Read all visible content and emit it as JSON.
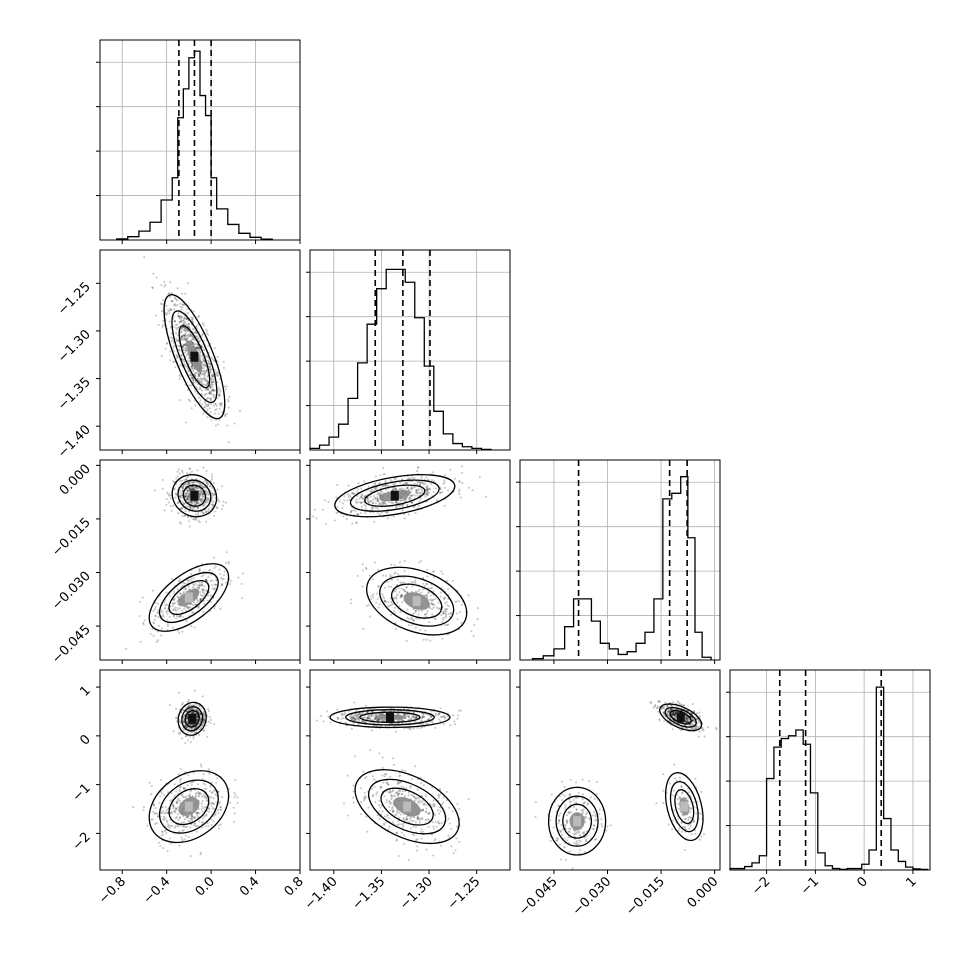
{
  "chart_data": {
    "type": "corner",
    "title": "",
    "parameters": [
      {
        "range": [
          -1.0,
          0.8
        ],
        "ticks": [
          -0.8,
          -0.4,
          0.0,
          0.4,
          0.8
        ],
        "tick_labels": [
          "−0.8",
          "−0.4",
          "0.0",
          "0.4",
          "0.8"
        ],
        "grid_values": [
          -0.8,
          -0.4,
          0.0,
          0.4,
          0.8
        ],
        "quantiles": [
          -0.29,
          -0.15,
          0.0
        ],
        "histogram": {
          "bin_edges": [
            -0.85,
            -0.75,
            -0.65,
            -0.55,
            -0.45,
            -0.35,
            -0.3,
            -0.25,
            -0.2,
            -0.15,
            -0.1,
            -0.05,
            0.0,
            0.05,
            0.15,
            0.25,
            0.35,
            0.45,
            0.55
          ],
          "counts": [
            0.5,
            1.5,
            4,
            8,
            18,
            28,
            55,
            68,
            82,
            85,
            65,
            56,
            28,
            14,
            7,
            3,
            1.2,
            0.4
          ]
        },
        "hist_ymax": 90
      },
      {
        "range": [
          -1.425,
          -1.215
        ],
        "ticks": [
          -1.4,
          -1.35,
          -1.3,
          -1.25
        ],
        "tick_labels": [
          "−1.40",
          "−1.35",
          "−1.30",
          "−1.25"
        ],
        "grid_values": [
          -1.4,
          -1.35,
          -1.3,
          -1.25
        ],
        "quantiles": [
          -1.3565,
          -1.3275,
          -1.299
        ],
        "histogram": {
          "bin_edges": [
            -1.425,
            -1.415,
            -1.405,
            -1.395,
            -1.385,
            -1.375,
            -1.365,
            -1.355,
            -1.345,
            -1.335,
            -1.325,
            -1.315,
            -1.305,
            -1.295,
            -1.285,
            -1.275,
            -1.265,
            -1.255,
            -1.245,
            -1.235
          ],
          "counts": [
            0.5,
            1.5,
            4,
            8,
            16,
            27,
            39,
            50,
            56,
            56,
            52,
            41,
            26,
            12,
            5,
            2,
            1,
            0.5,
            0.2
          ]
        },
        "hist_ymax": 62
      },
      {
        "range": [
          -0.0545,
          0.0015
        ],
        "ticks": [
          -0.045,
          -0.03,
          -0.015,
          0.0
        ],
        "tick_labels": [
          "−0.045",
          "−0.030",
          "−0.015",
          "0.000"
        ],
        "grid_values": [
          -0.045,
          -0.03,
          -0.015,
          0.0
        ],
        "quantiles": [
          -0.0381,
          -0.0126,
          -0.0077
        ],
        "histogram": {
          "bin_edges": [
            -0.051,
            -0.048,
            -0.045,
            -0.042,
            -0.0395,
            -0.037,
            -0.0345,
            -0.032,
            -0.0295,
            -0.027,
            -0.0245,
            -0.022,
            -0.0195,
            -0.017,
            -0.0145,
            -0.012,
            -0.0095,
            -0.0075,
            -0.0055,
            -0.0035,
            -0.001
          ],
          "counts": [
            0.5,
            1.5,
            4,
            12,
            22,
            22,
            14,
            6,
            4,
            2,
            3,
            6,
            10,
            22,
            58,
            60,
            66,
            44,
            10,
            1
          ]
        },
        "hist_ymax": 72
      },
      {
        "range": [
          -2.75,
          1.35
        ],
        "ticks": [
          -2,
          -1,
          0,
          1
        ],
        "tick_labels": [
          "−2",
          "−1",
          "0",
          "1"
        ],
        "grid_values": [
          -2,
          -1,
          0,
          1
        ],
        "quantiles": [
          -1.73,
          -1.2,
          0.35
        ],
        "histogram": {
          "bin_edges": [
            -2.75,
            -2.45,
            -2.3,
            -2.15,
            -2.0,
            -1.85,
            -1.7,
            -1.55,
            -1.4,
            -1.25,
            -1.1,
            -0.95,
            -0.8,
            -0.65,
            -0.5,
            -0.35,
            -0.2,
            -0.05,
            0.1,
            0.25,
            0.4,
            0.55,
            0.7,
            0.85,
            1.0,
            1.15,
            1.3
          ],
          "counts": [
            0.5,
            1.2,
            2.5,
            5,
            32,
            43,
            46,
            47,
            49,
            44,
            27,
            6,
            1.5,
            0.5,
            0.2,
            0.5,
            0.5,
            2,
            7,
            64,
            18,
            7,
            3,
            1,
            0.4,
            0.2
          ]
        },
        "hist_ymax": 70
      }
    ],
    "pairs": [
      {
        "x_param": 0,
        "y_param": 1,
        "clusters": [
          {
            "cx": -0.15,
            "cy": -1.327,
            "sx": 0.13,
            "sy": 0.031,
            "rho": -0.75,
            "weight": 1.0
          }
        ]
      },
      {
        "x_param": 0,
        "y_param": 2,
        "clusters": [
          {
            "cx": -0.15,
            "cy": -0.0085,
            "sx": 0.095,
            "sy": 0.0028,
            "rho": -0.1,
            "weight": 0.6
          },
          {
            "cx": -0.2,
            "cy": -0.037,
            "sx": 0.17,
            "sy": 0.0045,
            "rho": 0.6,
            "weight": 0.4
          }
        ]
      },
      {
        "x_param": 0,
        "y_param": 3,
        "clusters": [
          {
            "cx": -0.17,
            "cy": 0.35,
            "sx": 0.06,
            "sy": 0.16,
            "rho": 0.1,
            "weight": 0.55
          },
          {
            "cx": -0.2,
            "cy": -1.45,
            "sx": 0.17,
            "sy": 0.35,
            "rho": 0.3,
            "weight": 0.45
          }
        ]
      },
      {
        "x_param": 1,
        "y_param": 2,
        "clusters": [
          {
            "cx": -1.336,
            "cy": -0.0085,
            "sx": 0.03,
            "sy": 0.0028,
            "rho": 0.45,
            "weight": 0.6
          },
          {
            "cx": -1.313,
            "cy": -0.038,
            "sx": 0.025,
            "sy": 0.0045,
            "rho": -0.35,
            "weight": 0.4
          }
        ]
      },
      {
        "x_param": 1,
        "y_param": 3,
        "clusters": [
          {
            "cx": -1.341,
            "cy": 0.38,
            "sx": 0.03,
            "sy": 0.1,
            "rho": 0.0,
            "weight": 0.55
          },
          {
            "cx": -1.323,
            "cy": -1.45,
            "sx": 0.026,
            "sy": 0.36,
            "rho": -0.45,
            "weight": 0.45
          }
        ]
      },
      {
        "x_param": 2,
        "y_param": 3,
        "clusters": [
          {
            "cx": -0.0095,
            "cy": 0.38,
            "sx": 0.0028,
            "sy": 0.13,
            "rho": -0.55,
            "weight": 0.6
          },
          {
            "cx": -0.0385,
            "cy": -1.75,
            "sx": 0.0038,
            "sy": 0.33,
            "rho": 0.0,
            "weight": 0.25
          },
          {
            "cx": -0.0085,
            "cy": -1.45,
            "sx": 0.0025,
            "sy": 0.33,
            "rho": -0.35,
            "weight": 0.15
          }
        ]
      }
    ]
  }
}
